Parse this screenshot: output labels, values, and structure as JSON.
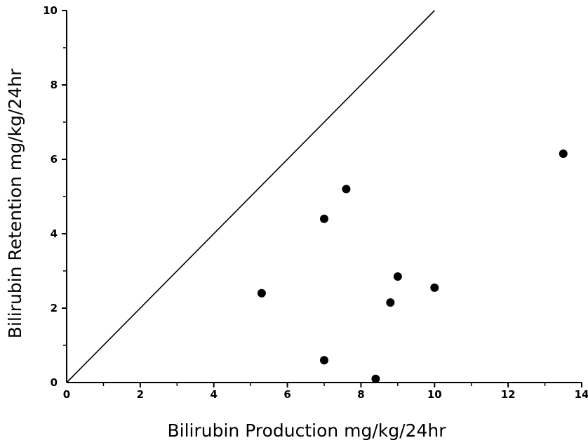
{
  "chart_data": {
    "type": "scatter",
    "title": "",
    "xlabel": "Bilirubin Production mg/kg/24hr",
    "ylabel": "Bilirubin Retention mg/kg/24hr",
    "xlim": [
      0,
      14
    ],
    "ylim": [
      0,
      10
    ],
    "x_ticks": [
      0,
      2,
      4,
      6,
      8,
      10,
      12,
      14
    ],
    "y_ticks": [
      0,
      2,
      4,
      6,
      8,
      10
    ],
    "grid": false,
    "legend": "none",
    "reference_line": {
      "from": [
        0,
        0
      ],
      "to": [
        10,
        10
      ]
    },
    "points": [
      {
        "x": 5.3,
        "y": 2.4
      },
      {
        "x": 7.0,
        "y": 4.4
      },
      {
        "x": 7.6,
        "y": 5.2
      },
      {
        "x": 7.0,
        "y": 0.6
      },
      {
        "x": 8.4,
        "y": 0.1
      },
      {
        "x": 8.8,
        "y": 2.15
      },
      {
        "x": 9.0,
        "y": 2.85
      },
      {
        "x": 10.0,
        "y": 2.55
      },
      {
        "x": 13.5,
        "y": 6.15
      }
    ],
    "colors": {
      "marks": "#000000",
      "background": "#ffffff"
    }
  }
}
